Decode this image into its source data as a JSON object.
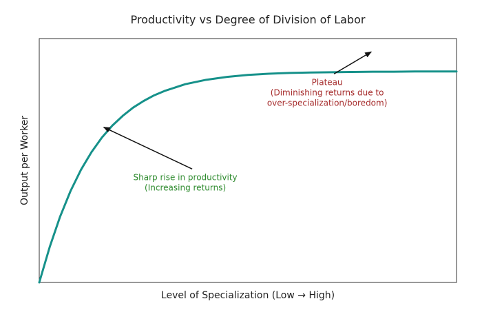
{
  "chart_data": {
    "type": "line",
    "title": "Productivity vs Degree of Division of Labor",
    "xlabel": "Level of Specialization (Low → High)",
    "ylabel": "Output per Worker",
    "xlim": [
      0,
      10
    ],
    "ylim": [
      0,
      10
    ],
    "grid": false,
    "series": [
      {
        "color": "#16918a",
        "x": [
          0,
          0.25,
          0.5,
          0.75,
          1,
          1.25,
          1.5,
          1.75,
          2,
          2.25,
          2.5,
          2.75,
          3,
          3.5,
          4,
          4.5,
          5,
          5.5,
          6,
          6.5,
          7,
          7.5,
          8,
          8.5,
          9,
          9.5,
          10
        ],
        "y": [
          0,
          1.45,
          2.7,
          3.75,
          4.62,
          5.34,
          5.94,
          6.43,
          6.83,
          7.17,
          7.44,
          7.67,
          7.85,
          8.13,
          8.31,
          8.43,
          8.51,
          8.56,
          8.59,
          8.61,
          8.62,
          8.63,
          8.64,
          8.64,
          8.65,
          8.65,
          8.65
        ]
      }
    ],
    "annotations": [
      {
        "lines": [
          "Sharp rise in productivity",
          "(Increasing returns)"
        ],
        "color": "#2e8b2e",
        "text_x": 3.5,
        "text_y": 4.2,
        "target_x": 1.5,
        "target_y": 6.4
      },
      {
        "lines": [
          "Plateau",
          "(Diminishing returns due to",
          "over-specialization/boredom)"
        ],
        "color": "#a52a2a",
        "text_x": 6.9,
        "text_y": 8.1,
        "target_x": 8.0,
        "target_y": 9.5
      }
    ]
  }
}
